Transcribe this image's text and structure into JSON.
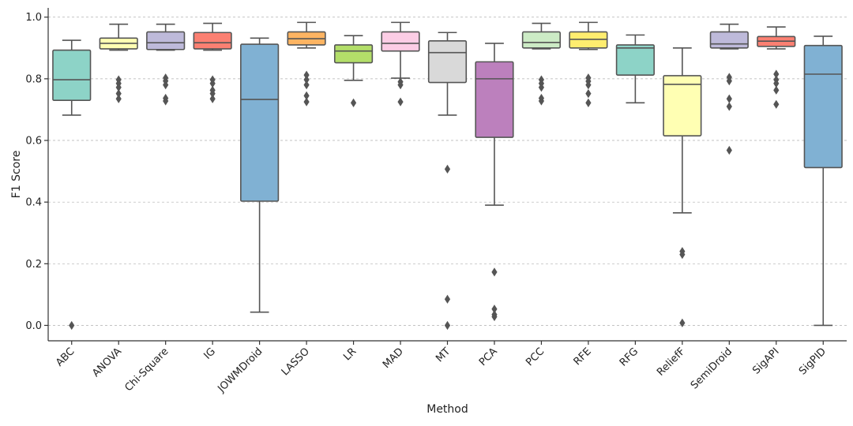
{
  "chart_data": {
    "type": "box",
    "title": "",
    "xlabel": "Method",
    "ylabel": "F1 Score",
    "ylim": [
      -0.05,
      1.03
    ],
    "yticks": [
      "0.0",
      "0.2",
      "0.4",
      "0.6",
      "0.8",
      "1.0"
    ],
    "grid": true,
    "boxes": [
      {
        "name": "ABC",
        "color": "#8dd3c7",
        "whisker_low": 0.682,
        "q1": 0.73,
        "median": 0.797,
        "q3": 0.893,
        "whisker_high": 0.925,
        "outliers": [
          0.0
        ]
      },
      {
        "name": "ANOVA",
        "color": "#ffffb3",
        "whisker_low": 0.893,
        "q1": 0.897,
        "median": 0.915,
        "q3": 0.932,
        "whisker_high": 0.977,
        "outliers": [
          0.797,
          0.785,
          0.772,
          0.752,
          0.735
        ]
      },
      {
        "name": "Chi-Square",
        "color": "#bebada",
        "whisker_low": 0.893,
        "q1": 0.895,
        "median": 0.917,
        "q3": 0.952,
        "whisker_high": 0.977,
        "outliers": [
          0.803,
          0.793,
          0.78,
          0.737,
          0.728
        ]
      },
      {
        "name": "IG",
        "color": "#fb8072",
        "whisker_low": 0.893,
        "q1": 0.897,
        "median": 0.917,
        "q3": 0.95,
        "whisker_high": 0.98,
        "outliers": [
          0.797,
          0.785,
          0.763,
          0.752,
          0.735
        ]
      },
      {
        "name": "JOWMDroid",
        "color": "#80b1d3",
        "whisker_low": 0.043,
        "q1": 0.403,
        "median": 0.733,
        "q3": 0.912,
        "whisker_high": 0.932,
        "outliers": []
      },
      {
        "name": "LASSO",
        "color": "#fdb462",
        "whisker_low": 0.9,
        "q1": 0.91,
        "median": 0.93,
        "q3": 0.952,
        "whisker_high": 0.983,
        "outliers": [
          0.812,
          0.797,
          0.78,
          0.745,
          0.725
        ]
      },
      {
        "name": "LR",
        "color": "#b3de69",
        "whisker_low": 0.795,
        "q1": 0.852,
        "median": 0.89,
        "q3": 0.91,
        "whisker_high": 0.94,
        "outliers": [
          0.722
        ]
      },
      {
        "name": "MAD",
        "color": "#fccde5",
        "whisker_low": 0.802,
        "q1": 0.89,
        "median": 0.915,
        "q3": 0.952,
        "whisker_high": 0.983,
        "outliers": [
          0.79,
          0.78,
          0.725
        ]
      },
      {
        "name": "MT",
        "color": "#d9d9d9",
        "whisker_low": 0.682,
        "q1": 0.788,
        "median": 0.885,
        "q3": 0.923,
        "whisker_high": 0.95,
        "outliers": [
          0.507,
          0.085,
          0.0
        ]
      },
      {
        "name": "PCA",
        "color": "#bc80bd",
        "whisker_low": 0.39,
        "q1": 0.61,
        "median": 0.8,
        "q3": 0.855,
        "whisker_high": 0.915,
        "outliers": [
          0.173,
          0.053,
          0.035,
          0.028
        ]
      },
      {
        "name": "PCC",
        "color": "#ccebc5",
        "whisker_low": 0.897,
        "q1": 0.9,
        "median": 0.918,
        "q3": 0.952,
        "whisker_high": 0.98,
        "outliers": [
          0.797,
          0.785,
          0.772,
          0.737,
          0.728
        ]
      },
      {
        "name": "RFE",
        "color": "#ffed6f",
        "whisker_low": 0.895,
        "q1": 0.9,
        "median": 0.928,
        "q3": 0.952,
        "whisker_high": 0.983,
        "outliers": [
          0.803,
          0.792,
          0.78,
          0.752,
          0.722
        ]
      },
      {
        "name": "RFG",
        "color": "#8dd3c7",
        "whisker_low": 0.722,
        "q1": 0.812,
        "median": 0.9,
        "q3": 0.91,
        "whisker_high": 0.942,
        "outliers": []
      },
      {
        "name": "ReliefF",
        "color": "#ffffb3",
        "whisker_low": 0.365,
        "q1": 0.615,
        "median": 0.782,
        "q3": 0.81,
        "whisker_high": 0.9,
        "outliers": [
          0.24,
          0.23,
          0.008
        ]
      },
      {
        "name": "SemiDroid",
        "color": "#bebada",
        "whisker_low": 0.897,
        "q1": 0.9,
        "median": 0.913,
        "q3": 0.952,
        "whisker_high": 0.977,
        "outliers": [
          0.805,
          0.793,
          0.735,
          0.71,
          0.568
        ]
      },
      {
        "name": "SigAPI",
        "color": "#fb8072",
        "whisker_low": 0.897,
        "q1": 0.905,
        "median": 0.922,
        "q3": 0.937,
        "whisker_high": 0.968,
        "outliers": [
          0.815,
          0.797,
          0.785,
          0.763,
          0.717
        ]
      },
      {
        "name": "SigPID",
        "color": "#80b1d3",
        "whisker_low": 0.0,
        "q1": 0.512,
        "median": 0.815,
        "q3": 0.908,
        "whisker_high": 0.938,
        "outliers": []
      }
    ]
  }
}
